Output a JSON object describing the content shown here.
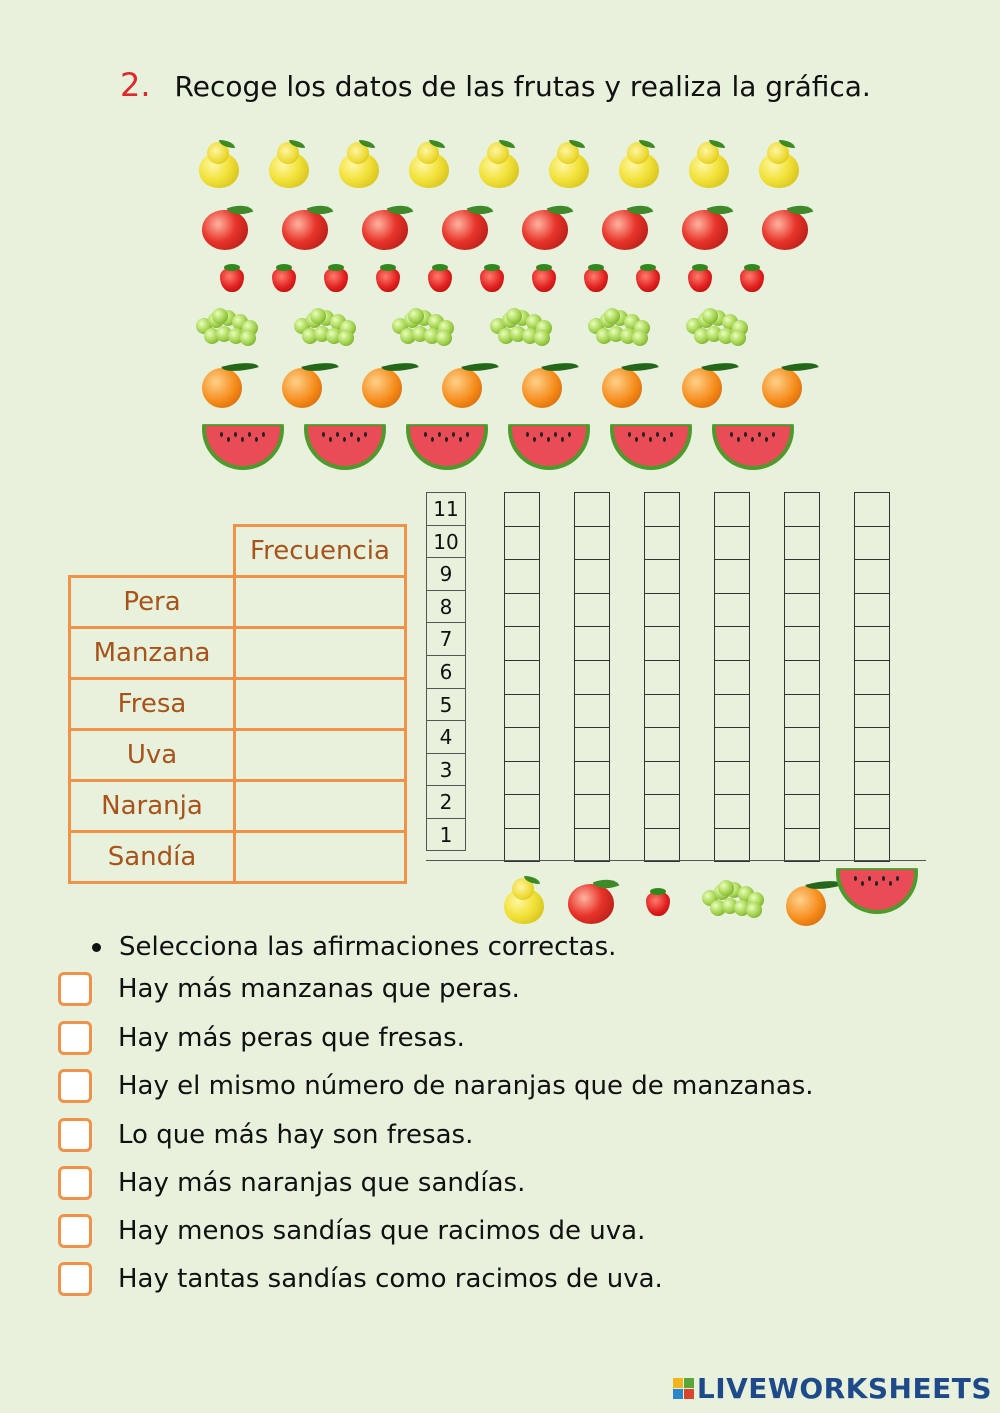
{
  "title": {
    "number": "2.",
    "text": "Recoge los datos de las frutas y realiza la gráfica."
  },
  "fruit_rows": {
    "pera": 9,
    "manzana": 8,
    "fresa": 11,
    "uva": 6,
    "naranja": 8,
    "sandia": 6
  },
  "table": {
    "header": "Frecuencia",
    "rows": [
      {
        "label": "Pera",
        "value": ""
      },
      {
        "label": "Manzana",
        "value": ""
      },
      {
        "label": "Fresa",
        "value": ""
      },
      {
        "label": "Uva",
        "value": ""
      },
      {
        "label": "Naranja",
        "value": ""
      },
      {
        "label": "Sandía",
        "value": ""
      }
    ]
  },
  "graph": {
    "y_ticks": [
      "11",
      "10",
      "9",
      "8",
      "7",
      "6",
      "5",
      "4",
      "3",
      "2",
      "1"
    ],
    "columns": 7,
    "x_icons": [
      "pear-icon",
      "apple-icon",
      "strawberry-icon",
      "grape-icon",
      "orange-icon",
      "watermelon-icon"
    ]
  },
  "instructions": "Selecciona las afirmaciones correctas.",
  "statements": [
    "Hay más manzanas que peras.",
    "Hay más peras que fresas.",
    "Hay el mismo número de naranjas que de manzanas.",
    "Lo que más hay son fresas.",
    "Hay más naranjas que sandías.",
    "Hay menos sandías que racimos de uva.",
    "Hay tantas sandías como racimos de uva."
  ],
  "logo_text": "LIVEWORKSHEETS",
  "colors": {
    "title_number": "#e0272b",
    "table_border": "#f0924a",
    "table_text": "#a7531a",
    "logo": "#1f4a8a"
  }
}
